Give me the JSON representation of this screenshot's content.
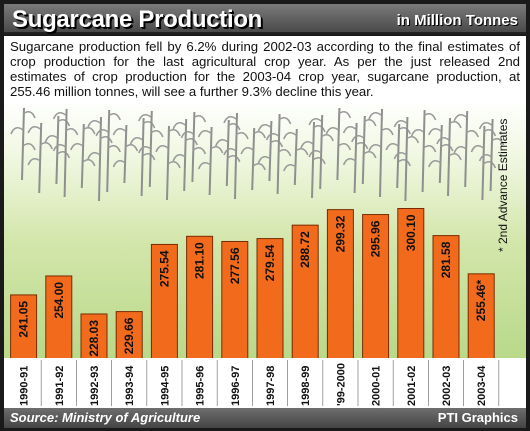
{
  "header": {
    "title": "Sugarcane Production",
    "unit": "in Million Tonnes"
  },
  "description": "Sugarcane production fell by 6.2% during 2002-03 according to the final estimates of crop production for the last agricultural crop year. As per the just released 2nd estimates of crop production for the 2003-04 crop year, sugarcane production, at 255.46 million tonnes, will see a further 9.3% decline this year.",
  "side_note": "* 2nd Advance Estimates",
  "footer": {
    "source": "Source: Ministry of Agriculture",
    "credit": "PTI Graphics"
  },
  "colors": {
    "bar": "#f26b1d",
    "bar_edge": "#7a2a00",
    "background_top": "#ffffff",
    "background_bottom": "#b9d98a"
  },
  "chart_data": {
    "type": "bar",
    "title": "Sugarcane Production",
    "ylabel": "",
    "xlabel": "",
    "ylim": [
      0,
      310
    ],
    "grid": false,
    "categories": [
      "1990-91",
      "1991-92",
      "1992-93",
      "1993-94",
      "1994-95",
      "1995-96",
      "1996-97",
      "1997-98",
      "1998-99",
      "'99-2000",
      "2000-01",
      "2001-02",
      "2002-03",
      "2003-04"
    ],
    "values": [
      241.05,
      254.0,
      228.03,
      229.66,
      275.54,
      281.1,
      277.56,
      279.54,
      288.72,
      299.32,
      295.96,
      300.1,
      281.58,
      255.46
    ],
    "value_labels": [
      "241.05",
      "254.00",
      "228.03",
      "229.66",
      "275.54",
      "281.10",
      "277.56",
      "279.54",
      "288.72",
      "299.32",
      "295.96",
      "300.10",
      "281.58",
      "255.46*"
    ]
  }
}
